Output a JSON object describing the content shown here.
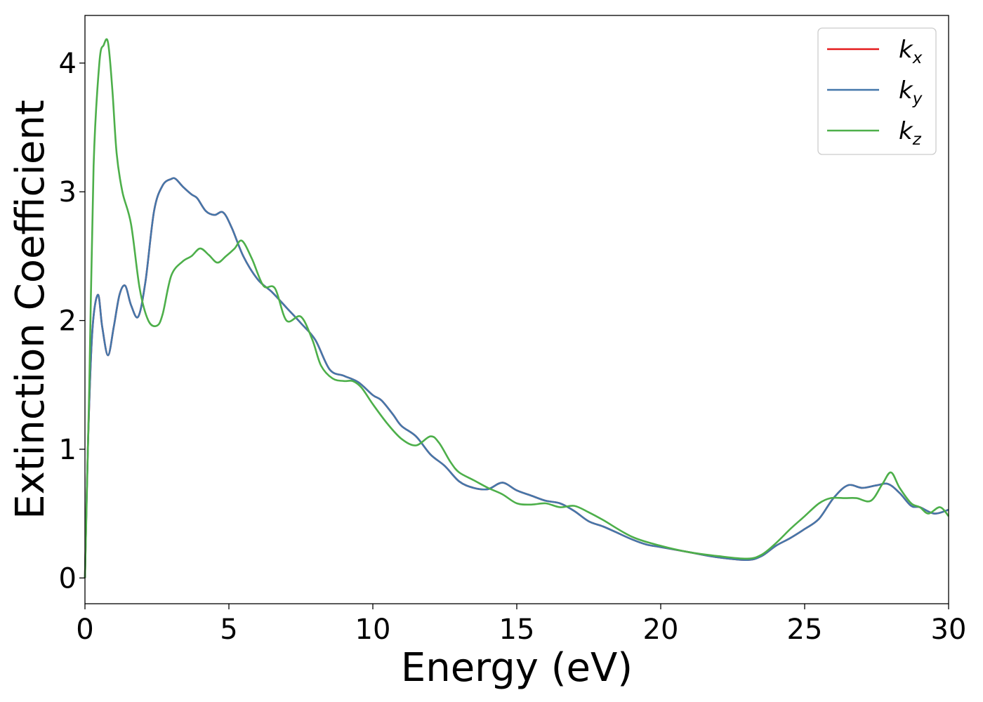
{
  "chart_data": {
    "type": "line",
    "title": "",
    "xlabel": "Energy (eV)",
    "ylabel": "Extinction Coefficient",
    "xlim": [
      0,
      30
    ],
    "ylim": [
      -0.2,
      4.37
    ],
    "xticks": [
      0,
      5,
      10,
      15,
      20,
      25,
      30
    ],
    "yticks": [
      0,
      1,
      2,
      3,
      4
    ],
    "xtick_labels": [
      "0",
      "5",
      "10",
      "15",
      "20",
      "25",
      "30"
    ],
    "ytick_labels": [
      "0",
      "1",
      "2",
      "3",
      "4"
    ],
    "grid": false,
    "legend_position": "top-right",
    "series": [
      {
        "name": "k",
        "subscript": "x",
        "color": "#e41a1c",
        "x": [
          0,
          0.1,
          0.25,
          0.45,
          0.6,
          0.8,
          1.0,
          1.2,
          1.4,
          1.6,
          1.85,
          2.1,
          2.4,
          2.7,
          3.0,
          3.15,
          3.4,
          3.7,
          3.9,
          4.2,
          4.5,
          4.8,
          5.1,
          5.5,
          6.0,
          6.5,
          7.0,
          7.5,
          8.0,
          8.5,
          9.0,
          9.5,
          10.0,
          10.3,
          10.7,
          11.0,
          11.5,
          12.0,
          12.5,
          13.0,
          13.5,
          14.0,
          14.5,
          15.0,
          15.5,
          16.0,
          16.5,
          17.0,
          17.5,
          18.0,
          18.5,
          19.0,
          19.5,
          20.0,
          21.0,
          22.0,
          23.0,
          23.5,
          24.0,
          24.5,
          25.0,
          25.5,
          26.0,
          26.5,
          27.0,
          27.5,
          27.9,
          28.3,
          28.7,
          29.0,
          29.5,
          30.0
        ],
        "y": [
          0,
          1.0,
          1.9,
          2.2,
          1.95,
          1.73,
          1.95,
          2.2,
          2.27,
          2.12,
          2.03,
          2.3,
          2.85,
          3.05,
          3.1,
          3.1,
          3.04,
          2.98,
          2.95,
          2.85,
          2.82,
          2.84,
          2.72,
          2.5,
          2.32,
          2.22,
          2.1,
          1.98,
          1.85,
          1.62,
          1.57,
          1.52,
          1.42,
          1.38,
          1.27,
          1.18,
          1.1,
          0.96,
          0.87,
          0.75,
          0.7,
          0.69,
          0.74,
          0.68,
          0.64,
          0.6,
          0.58,
          0.52,
          0.44,
          0.4,
          0.35,
          0.3,
          0.26,
          0.24,
          0.2,
          0.16,
          0.14,
          0.17,
          0.25,
          0.31,
          0.38,
          0.46,
          0.62,
          0.72,
          0.7,
          0.72,
          0.73,
          0.66,
          0.56,
          0.55,
          0.5,
          0.53
        ]
      },
      {
        "name": "k",
        "subscript": "y",
        "color": "#4477aa",
        "x": [
          0,
          0.1,
          0.25,
          0.45,
          0.6,
          0.8,
          1.0,
          1.2,
          1.4,
          1.6,
          1.85,
          2.1,
          2.4,
          2.7,
          3.0,
          3.15,
          3.4,
          3.7,
          3.9,
          4.2,
          4.5,
          4.8,
          5.1,
          5.5,
          6.0,
          6.5,
          7.0,
          7.5,
          8.0,
          8.5,
          9.0,
          9.5,
          10.0,
          10.3,
          10.7,
          11.0,
          11.5,
          12.0,
          12.5,
          13.0,
          13.5,
          14.0,
          14.5,
          15.0,
          15.5,
          16.0,
          16.5,
          17.0,
          17.5,
          18.0,
          18.5,
          19.0,
          19.5,
          20.0,
          21.0,
          22.0,
          23.0,
          23.5,
          24.0,
          24.5,
          25.0,
          25.5,
          26.0,
          26.5,
          27.0,
          27.5,
          27.9,
          28.3,
          28.7,
          29.0,
          29.5,
          30.0
        ],
        "y": [
          0,
          1.0,
          1.9,
          2.2,
          1.95,
          1.73,
          1.95,
          2.2,
          2.27,
          2.12,
          2.03,
          2.3,
          2.85,
          3.05,
          3.1,
          3.1,
          3.04,
          2.98,
          2.95,
          2.85,
          2.82,
          2.84,
          2.72,
          2.5,
          2.32,
          2.22,
          2.1,
          1.98,
          1.85,
          1.62,
          1.57,
          1.52,
          1.42,
          1.38,
          1.27,
          1.18,
          1.1,
          0.96,
          0.87,
          0.75,
          0.7,
          0.69,
          0.74,
          0.68,
          0.64,
          0.6,
          0.58,
          0.52,
          0.44,
          0.4,
          0.35,
          0.3,
          0.26,
          0.24,
          0.2,
          0.16,
          0.14,
          0.17,
          0.25,
          0.31,
          0.38,
          0.46,
          0.62,
          0.72,
          0.7,
          0.72,
          0.73,
          0.66,
          0.56,
          0.55,
          0.5,
          0.53
        ]
      },
      {
        "name": "k",
        "subscript": "z",
        "color": "#4daf4a",
        "x": [
          0,
          0.15,
          0.3,
          0.5,
          0.65,
          0.8,
          0.95,
          1.1,
          1.3,
          1.6,
          1.9,
          2.2,
          2.5,
          2.7,
          3.0,
          3.4,
          3.7,
          4.0,
          4.3,
          4.6,
          4.9,
          5.2,
          5.45,
          5.8,
          6.2,
          6.6,
          7.0,
          7.5,
          7.9,
          8.2,
          8.6,
          9.0,
          9.3,
          9.6,
          10.0,
          10.5,
          11.0,
          11.5,
          12.0,
          12.3,
          12.7,
          13.0,
          13.5,
          14.0,
          14.5,
          15.0,
          15.5,
          16.0,
          16.5,
          17.0,
          17.5,
          18.0,
          19.0,
          20.0,
          21.0,
          22.0,
          23.0,
          23.5,
          24.0,
          24.5,
          25.0,
          25.5,
          25.9,
          26.4,
          26.8,
          27.3,
          27.7,
          28.0,
          28.3,
          28.7,
          29.0,
          29.3,
          29.7,
          30.0
        ],
        "y": [
          0,
          1.5,
          3.2,
          4.0,
          4.14,
          4.16,
          3.8,
          3.3,
          3.0,
          2.75,
          2.25,
          2.0,
          1.96,
          2.05,
          2.35,
          2.46,
          2.5,
          2.56,
          2.51,
          2.45,
          2.5,
          2.56,
          2.62,
          2.48,
          2.27,
          2.25,
          2.0,
          2.03,
          1.85,
          1.65,
          1.55,
          1.53,
          1.53,
          1.48,
          1.35,
          1.2,
          1.08,
          1.03,
          1.1,
          1.05,
          0.9,
          0.82,
          0.76,
          0.7,
          0.65,
          0.58,
          0.57,
          0.58,
          0.55,
          0.56,
          0.51,
          0.45,
          0.32,
          0.25,
          0.2,
          0.17,
          0.15,
          0.18,
          0.27,
          0.38,
          0.48,
          0.58,
          0.62,
          0.62,
          0.62,
          0.6,
          0.73,
          0.82,
          0.7,
          0.58,
          0.55,
          0.5,
          0.55,
          0.48
        ]
      }
    ]
  }
}
